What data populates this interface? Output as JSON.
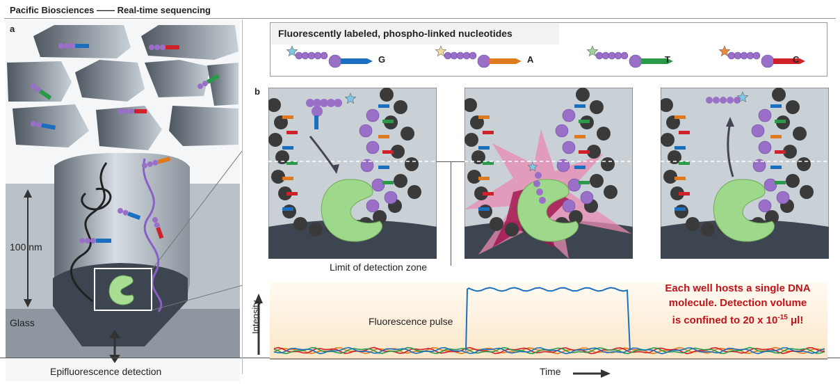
{
  "header": {
    "title": "Pacific Biosciences —— Real-time sequencing"
  },
  "panel_a": {
    "label": "a",
    "scale_label": "100 nm",
    "glass_label": "Glass",
    "detection_label": "Epifluorescence detection"
  },
  "legend": {
    "title": "Fluorescently labeled, phospho-linked nucleotides",
    "items": [
      {
        "base": "G",
        "color": "#1a6fbf",
        "star": "#7fc8e8"
      },
      {
        "base": "A",
        "color": "#e07a1f",
        "star": "#f3dca0"
      },
      {
        "base": "T",
        "color": "#2a9a4a",
        "star": "#9fd49a"
      },
      {
        "base": "C",
        "color": "#d0202a",
        "star": "#ef8a3a"
      }
    ]
  },
  "panel_b": {
    "label": "b",
    "zone_label": "Limit of detection zone",
    "pulse_label": "Fluorescence pulse",
    "y_axis_label": "Intensity",
    "x_axis_label": "Time"
  },
  "note": {
    "line1": "Each well hosts a single DNA",
    "line2": "molecule. Detection volume",
    "line3_prefix": "is confined to 20 x 10",
    "line3_exp": "-15",
    "line3_suffix": " μl!"
  },
  "colors": {
    "g": "#1a6fbf",
    "a": "#e07a1f",
    "t": "#2a9a4a",
    "c": "#d0202a",
    "nucleotide": "#9a6fc8",
    "polymerase": "#9ed88a",
    "dna_bead": "#3a3a3a",
    "pulse_bg": "#fbe9cf",
    "note": "#c0131a"
  }
}
